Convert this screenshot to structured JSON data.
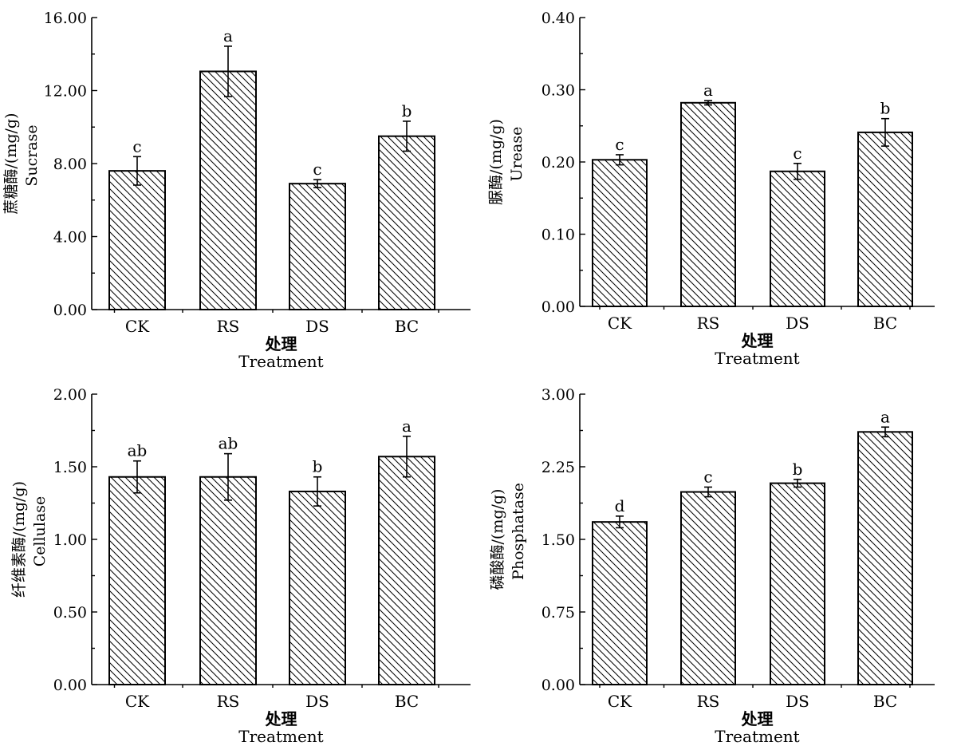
{
  "chart_data": [
    {
      "type": "bar",
      "categories": [
        "CK",
        "RS",
        "DS",
        "BC"
      ],
      "values": [
        7.6,
        13.05,
        6.9,
        9.5
      ],
      "errors": [
        0.78,
        1.38,
        0.22,
        0.82
      ],
      "significance": [
        "c",
        "a",
        "c",
        "b"
      ],
      "ylim": [
        0,
        16
      ],
      "yticks": [
        "0.00",
        "4.00",
        "8.00",
        "12.00",
        "16.00"
      ],
      "ylabel_cn": "蔗糖酶/(mg/g)",
      "ylabel_en": "Sucrase",
      "xlabel_cn": "处理",
      "xlabel_en": "Treatment"
    },
    {
      "type": "bar",
      "categories": [
        "CK",
        "RS",
        "DS",
        "BC"
      ],
      "values": [
        0.203,
        0.282,
        0.187,
        0.241
      ],
      "errors": [
        0.007,
        0.003,
        0.011,
        0.019
      ],
      "significance": [
        "c",
        "a",
        "c",
        "b"
      ],
      "ylim": [
        0,
        0.4
      ],
      "yticks": [
        "0.00",
        "0.10",
        "0.20",
        "0.30",
        "0.40"
      ],
      "ylabel_cn": "脲酶/(mg/g)",
      "ylabel_en": "Urease",
      "xlabel_cn": "处理",
      "xlabel_en": "Treatment"
    },
    {
      "type": "bar",
      "categories": [
        "CK",
        "RS",
        "DS",
        "BC"
      ],
      "values": [
        1.43,
        1.43,
        1.33,
        1.57
      ],
      "errors": [
        0.11,
        0.16,
        0.1,
        0.14
      ],
      "significance": [
        "ab",
        "ab",
        "b",
        "a"
      ],
      "ylim": [
        0,
        2
      ],
      "yticks": [
        "0.00",
        "0.50",
        "1.00",
        "1.50",
        "2.00"
      ],
      "ylabel_cn": "纤维素酶/(mg/g)",
      "ylabel_en": "Cellulase",
      "xlabel_cn": "处理",
      "xlabel_en": "Treatment"
    },
    {
      "type": "bar",
      "categories": [
        "CK",
        "RS",
        "DS",
        "BC"
      ],
      "values": [
        1.68,
        1.99,
        2.08,
        2.61
      ],
      "errors": [
        0.06,
        0.05,
        0.04,
        0.05
      ],
      "significance": [
        "d",
        "c",
        "b",
        "a"
      ],
      "ylim": [
        0,
        3
      ],
      "yticks": [
        "0.00",
        "0.75",
        "1.50",
        "2.25",
        "3.00"
      ],
      "ylabel_cn": "磷酸酶/(mg/g)",
      "ylabel_en": "Phosphatase",
      "xlabel_cn": "处理",
      "xlabel_en": "Treatment"
    }
  ]
}
